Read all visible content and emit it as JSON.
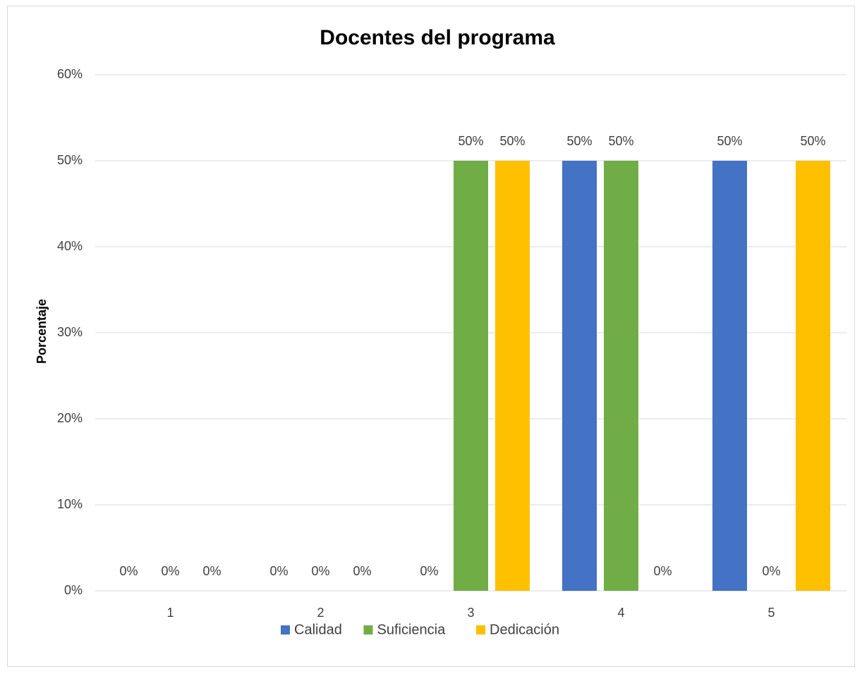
{
  "chart_data": {
    "type": "bar",
    "title": "Docentes del programa",
    "y_label": "Porcentaje",
    "categories": [
      "1",
      "2",
      "3",
      "4",
      "5"
    ],
    "series": [
      {
        "name": "Calidad",
        "color": "#4472c4",
        "values": [
          0,
          0,
          0,
          50,
          50
        ],
        "value_labels": [
          "0%",
          "0%",
          "0%",
          "50%",
          "50%"
        ]
      },
      {
        "name": "Suficiencia",
        "color": "#70ad47",
        "values": [
          0,
          0,
          50,
          50,
          0
        ],
        "value_labels": [
          "0%",
          "0%",
          "50%",
          "50%",
          "0%"
        ]
      },
      {
        "name": "Dedicación",
        "color": "#ffc000",
        "values": [
          0,
          0,
          50,
          0,
          50
        ],
        "value_labels": [
          "0%",
          "0%",
          "50%",
          "0%",
          "50%"
        ]
      }
    ],
    "ylim": [
      0,
      60
    ],
    "yticks": [
      {
        "value": 0,
        "label": "0%"
      },
      {
        "value": 10,
        "label": "10%"
      },
      {
        "value": 20,
        "label": "20%"
      },
      {
        "value": 30,
        "label": "30%"
      },
      {
        "value": 40,
        "label": "40%"
      },
      {
        "value": 50,
        "label": "50%"
      },
      {
        "value": 60,
        "label": "60%"
      }
    ],
    "grid": true,
    "legend": "bottom"
  }
}
